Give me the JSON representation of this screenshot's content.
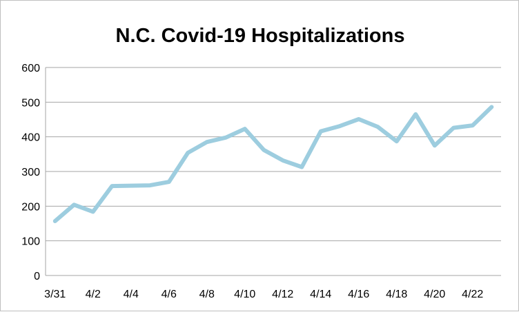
{
  "chart_data": {
    "type": "line",
    "title": "N.C. Covid-19 Hospitalizations",
    "xlabel": "",
    "ylabel": "",
    "ylim": [
      0,
      600
    ],
    "yticks": [
      0,
      100,
      200,
      300,
      400,
      500,
      600
    ],
    "grid": true,
    "legend": "none",
    "x": [
      "3/31",
      "4/1",
      "4/2",
      "4/3",
      "4/4",
      "4/5",
      "4/6",
      "4/7",
      "4/8",
      "4/9",
      "4/10",
      "4/11",
      "4/12",
      "4/13",
      "4/14",
      "4/15",
      "4/16",
      "4/17",
      "4/18",
      "4/19",
      "4/20",
      "4/21",
      "4/22",
      "4/23"
    ],
    "x_tick_labels": [
      "3/31",
      "4/2",
      "4/4",
      "4/6",
      "4/8",
      "4/10",
      "4/12",
      "4/14",
      "4/16",
      "4/18",
      "4/20",
      "4/22"
    ],
    "series": [
      {
        "name": "",
        "color": "#9dcddf",
        "values": [
          157,
          204,
          184,
          258,
          259,
          260,
          270,
          354,
          385,
          398,
          423,
          362,
          332,
          313,
          416,
          431,
          451,
          429,
          387,
          465,
          375,
          426,
          433,
          486
        ]
      }
    ]
  }
}
